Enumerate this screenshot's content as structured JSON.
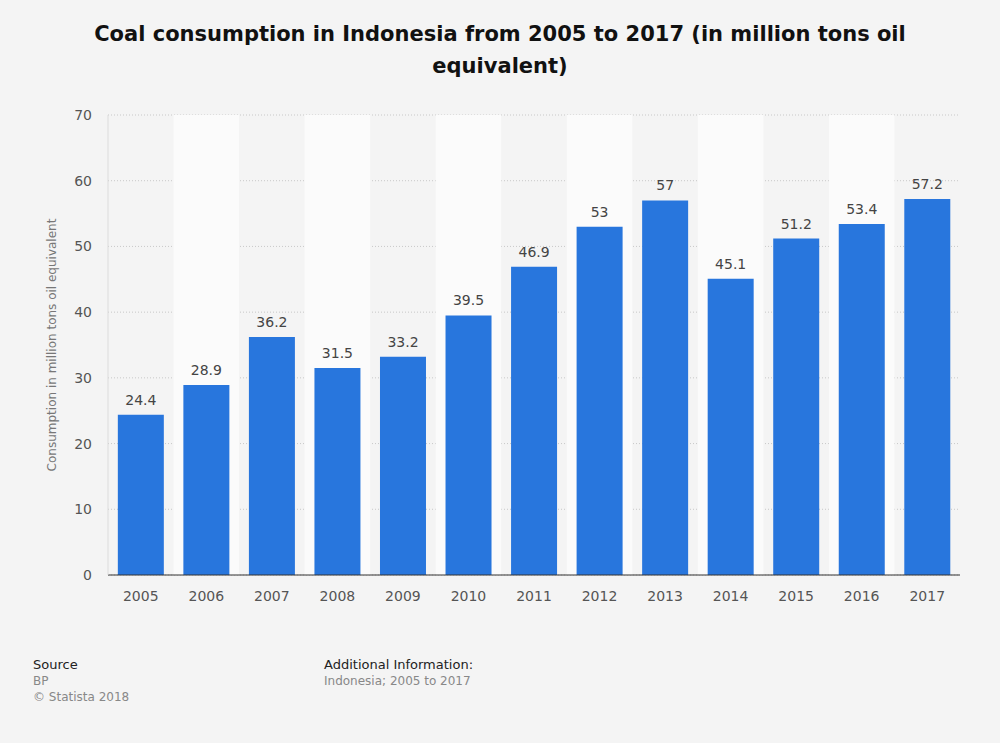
{
  "chart_data": {
    "type": "bar",
    "title": "Coal consumption in Indonesia from 2005 to 2017 (in million tons oil equivalent)",
    "y_label": "Consumption in million tons oil equivalent",
    "categories": [
      "2005",
      "2006",
      "2007",
      "2008",
      "2009",
      "2010",
      "2011",
      "2012",
      "2013",
      "2014",
      "2015",
      "2016",
      "2017"
    ],
    "values": [
      24.4,
      28.9,
      36.2,
      31.5,
      33.2,
      39.5,
      46.9,
      53,
      57,
      45.1,
      51.2,
      53.4,
      57.2
    ],
    "color": "#2876dd",
    "ylim": [
      0,
      70
    ],
    "yticks": [
      0,
      10,
      20,
      30,
      40,
      50,
      60,
      70
    ],
    "grid": true,
    "data_labels": true,
    "annotations": [
      "Source",
      "BP",
      "© Statista 2018",
      "Additional Information:",
      "Indonesia; 2005 to 2017"
    ]
  }
}
